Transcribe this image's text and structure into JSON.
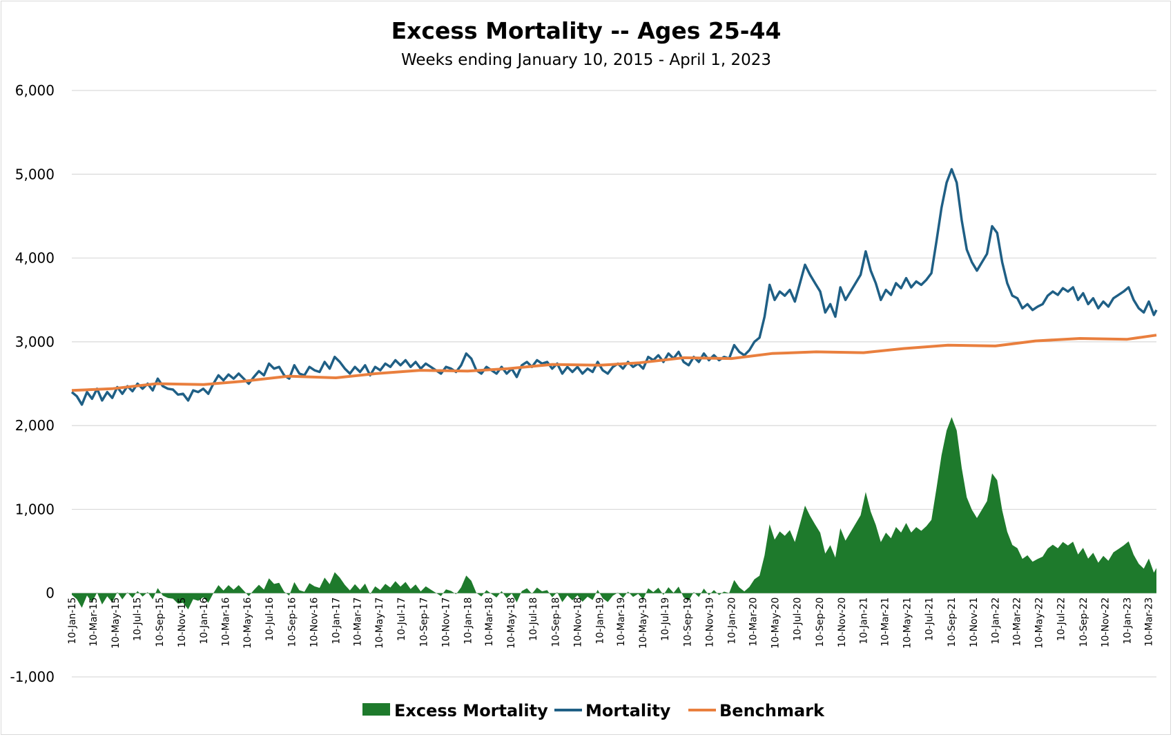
{
  "chart_data": {
    "type": "line",
    "title": "Excess Mortality -- Ages 25-44",
    "subtitle": "Weeks ending January 10, 2015 - April 1, 2023",
    "xlabel": "",
    "ylabel": "",
    "ylim": [
      -1000,
      6000
    ],
    "yticks": [
      -1000,
      0,
      1000,
      2000,
      3000,
      4000,
      5000,
      6000
    ],
    "ytick_labels": [
      "-1,000",
      "0",
      "1,000",
      "2,000",
      "3,000",
      "4,000",
      "5,000",
      "6,000"
    ],
    "xlim": [
      "2015-01-10",
      "2023-04-01"
    ],
    "x_tick_labels": [
      "10-Jan-15",
      "10-Mar-15",
      "10-May-15",
      "10-Jul-15",
      "10-Sep-15",
      "10-Nov-15",
      "10-Jan-16",
      "10-Mar-16",
      "10-May-16",
      "10-Jul-16",
      "10-Sep-16",
      "10-Nov-16",
      "10-Jan-17",
      "10-Mar-17",
      "10-May-17",
      "10-Jul-17",
      "10-Sep-17",
      "10-Nov-17",
      "10-Jan-18",
      "10-Mar-18",
      "10-May-18",
      "10-Jul-18",
      "10-Sep-18",
      "10-Nov-18",
      "10-Jan-19",
      "10-Mar-19",
      "10-May-19",
      "10-Jul-19",
      "10-Sep-19",
      "10-Nov-19",
      "10-Jan-20",
      "10-Mar-20",
      "10-May-20",
      "10-Jul-20",
      "10-Sep-20",
      "10-Nov-20",
      "10-Jan-21",
      "10-Mar-21",
      "10-May-21",
      "10-Jul-21",
      "10-Sep-21",
      "10-Nov-21",
      "10-Jan-22",
      "10-Mar-22",
      "10-May-22",
      "10-Jul-22",
      "10-Sep-22",
      "10-Nov-22",
      "10-Jan-23",
      "10-Mar-23"
    ],
    "grid": true,
    "legend_position": "bottom",
    "series": [
      {
        "name": "Excess Mortality",
        "type": "area",
        "color": "#1e7a2c",
        "computed_as": "Mortality minus Benchmark"
      },
      {
        "name": "Mortality",
        "type": "line",
        "color": "#1f5f85",
        "points": [
          [
            "2015-01-10",
            2400
          ],
          [
            "2015-01-24",
            2350
          ],
          [
            "2015-02-07",
            2250
          ],
          [
            "2015-02-21",
            2400
          ],
          [
            "2015-03-07",
            2320
          ],
          [
            "2015-03-21",
            2440
          ],
          [
            "2015-04-04",
            2300
          ],
          [
            "2015-04-18",
            2400
          ],
          [
            "2015-05-02",
            2330
          ],
          [
            "2015-05-16",
            2460
          ],
          [
            "2015-05-30",
            2380
          ],
          [
            "2015-06-13",
            2470
          ],
          [
            "2015-06-27",
            2410
          ],
          [
            "2015-07-11",
            2500
          ],
          [
            "2015-07-25",
            2440
          ],
          [
            "2015-08-08",
            2500
          ],
          [
            "2015-08-22",
            2420
          ],
          [
            "2015-09-05",
            2560
          ],
          [
            "2015-09-19",
            2470
          ],
          [
            "2015-10-03",
            2440
          ],
          [
            "2015-10-17",
            2430
          ],
          [
            "2015-10-31",
            2370
          ],
          [
            "2015-11-14",
            2380
          ],
          [
            "2015-11-28",
            2300
          ],
          [
            "2015-12-12",
            2420
          ],
          [
            "2015-12-26",
            2400
          ],
          [
            "2016-01-09",
            2440
          ],
          [
            "2016-01-23",
            2380
          ],
          [
            "2016-02-06",
            2500
          ],
          [
            "2016-02-20",
            2600
          ],
          [
            "2016-03-05",
            2540
          ],
          [
            "2016-03-19",
            2610
          ],
          [
            "2016-04-02",
            2560
          ],
          [
            "2016-04-16",
            2620
          ],
          [
            "2016-04-30",
            2560
          ],
          [
            "2016-05-14",
            2500
          ],
          [
            "2016-05-28",
            2580
          ],
          [
            "2016-06-11",
            2650
          ],
          [
            "2016-06-25",
            2600
          ],
          [
            "2016-07-09",
            2740
          ],
          [
            "2016-07-23",
            2680
          ],
          [
            "2016-08-06",
            2700
          ],
          [
            "2016-08-20",
            2600
          ],
          [
            "2016-09-03",
            2560
          ],
          [
            "2016-09-17",
            2720
          ],
          [
            "2016-10-01",
            2620
          ],
          [
            "2016-10-15",
            2600
          ],
          [
            "2016-10-29",
            2700
          ],
          [
            "2016-11-12",
            2660
          ],
          [
            "2016-11-26",
            2640
          ],
          [
            "2016-12-10",
            2760
          ],
          [
            "2016-12-24",
            2680
          ],
          [
            "2017-01-07",
            2820
          ],
          [
            "2017-01-21",
            2760
          ],
          [
            "2017-02-04",
            2680
          ],
          [
            "2017-02-18",
            2620
          ],
          [
            "2017-03-04",
            2700
          ],
          [
            "2017-03-18",
            2640
          ],
          [
            "2017-04-01",
            2720
          ],
          [
            "2017-04-15",
            2600
          ],
          [
            "2017-04-29",
            2700
          ],
          [
            "2017-05-13",
            2660
          ],
          [
            "2017-05-27",
            2740
          ],
          [
            "2017-06-10",
            2700
          ],
          [
            "2017-06-24",
            2780
          ],
          [
            "2017-07-08",
            2720
          ],
          [
            "2017-07-22",
            2780
          ],
          [
            "2017-08-05",
            2700
          ],
          [
            "2017-08-19",
            2760
          ],
          [
            "2017-09-02",
            2680
          ],
          [
            "2017-09-16",
            2740
          ],
          [
            "2017-09-30",
            2700
          ],
          [
            "2017-10-14",
            2660
          ],
          [
            "2017-10-28",
            2620
          ],
          [
            "2017-11-11",
            2700
          ],
          [
            "2017-11-25",
            2680
          ],
          [
            "2017-12-09",
            2640
          ],
          [
            "2017-12-23",
            2720
          ],
          [
            "2018-01-06",
            2860
          ],
          [
            "2018-01-20",
            2800
          ],
          [
            "2018-02-03",
            2660
          ],
          [
            "2018-02-17",
            2620
          ],
          [
            "2018-03-03",
            2700
          ],
          [
            "2018-03-17",
            2660
          ],
          [
            "2018-03-31",
            2620
          ],
          [
            "2018-04-14",
            2700
          ],
          [
            "2018-04-28",
            2620
          ],
          [
            "2018-05-12",
            2680
          ],
          [
            "2018-05-26",
            2580
          ],
          [
            "2018-06-09",
            2720
          ],
          [
            "2018-06-23",
            2760
          ],
          [
            "2018-07-07",
            2700
          ],
          [
            "2018-07-21",
            2780
          ],
          [
            "2018-08-04",
            2740
          ],
          [
            "2018-08-18",
            2760
          ],
          [
            "2018-09-01",
            2680
          ],
          [
            "2018-09-15",
            2740
          ],
          [
            "2018-09-29",
            2620
          ],
          [
            "2018-10-13",
            2700
          ],
          [
            "2018-10-27",
            2640
          ],
          [
            "2018-11-10",
            2700
          ],
          [
            "2018-11-24",
            2620
          ],
          [
            "2018-12-08",
            2680
          ],
          [
            "2018-12-22",
            2640
          ],
          [
            "2019-01-05",
            2760
          ],
          [
            "2019-01-19",
            2660
          ],
          [
            "2019-02-02",
            2620
          ],
          [
            "2019-02-16",
            2700
          ],
          [
            "2019-03-02",
            2740
          ],
          [
            "2019-03-16",
            2680
          ],
          [
            "2019-03-30",
            2760
          ],
          [
            "2019-04-13",
            2700
          ],
          [
            "2019-04-27",
            2740
          ],
          [
            "2019-05-11",
            2680
          ],
          [
            "2019-05-25",
            2820
          ],
          [
            "2019-06-08",
            2780
          ],
          [
            "2019-06-22",
            2840
          ],
          [
            "2019-07-06",
            2760
          ],
          [
            "2019-07-20",
            2860
          ],
          [
            "2019-08-03",
            2800
          ],
          [
            "2019-08-17",
            2880
          ],
          [
            "2019-08-31",
            2760
          ],
          [
            "2019-09-14",
            2720
          ],
          [
            "2019-09-28",
            2820
          ],
          [
            "2019-10-12",
            2760
          ],
          [
            "2019-10-26",
            2860
          ],
          [
            "2019-11-09",
            2780
          ],
          [
            "2019-11-23",
            2840
          ],
          [
            "2019-12-07",
            2780
          ],
          [
            "2019-12-21",
            2820
          ],
          [
            "2020-01-04",
            2800
          ],
          [
            "2020-01-18",
            2960
          ],
          [
            "2020-02-01",
            2880
          ],
          [
            "2020-02-15",
            2840
          ],
          [
            "2020-02-29",
            2900
          ],
          [
            "2020-03-14",
            3000
          ],
          [
            "2020-03-28",
            3050
          ],
          [
            "2020-04-11",
            3300
          ],
          [
            "2020-04-25",
            3680
          ],
          [
            "2020-05-09",
            3500
          ],
          [
            "2020-05-23",
            3600
          ],
          [
            "2020-06-06",
            3550
          ],
          [
            "2020-06-20",
            3620
          ],
          [
            "2020-07-04",
            3480
          ],
          [
            "2020-07-18",
            3700
          ],
          [
            "2020-08-01",
            3920
          ],
          [
            "2020-08-15",
            3800
          ],
          [
            "2020-08-29",
            3700
          ],
          [
            "2020-09-12",
            3600
          ],
          [
            "2020-09-26",
            3350
          ],
          [
            "2020-10-10",
            3450
          ],
          [
            "2020-10-24",
            3300
          ],
          [
            "2020-11-07",
            3650
          ],
          [
            "2020-11-21",
            3500
          ],
          [
            "2020-12-05",
            3600
          ],
          [
            "2020-12-19",
            3700
          ],
          [
            "2021-01-02",
            3800
          ],
          [
            "2021-01-16",
            4080
          ],
          [
            "2021-01-30",
            3850
          ],
          [
            "2021-02-13",
            3700
          ],
          [
            "2021-02-27",
            3500
          ],
          [
            "2021-03-13",
            3620
          ],
          [
            "2021-03-27",
            3560
          ],
          [
            "2021-04-10",
            3700
          ],
          [
            "2021-04-24",
            3640
          ],
          [
            "2021-05-08",
            3760
          ],
          [
            "2021-05-22",
            3650
          ],
          [
            "2021-06-05",
            3720
          ],
          [
            "2021-06-19",
            3680
          ],
          [
            "2021-07-03",
            3740
          ],
          [
            "2021-07-17",
            3820
          ],
          [
            "2021-07-31",
            4200
          ],
          [
            "2021-08-14",
            4600
          ],
          [
            "2021-08-28",
            4900
          ],
          [
            "2021-09-11",
            5060
          ],
          [
            "2021-09-25",
            4900
          ],
          [
            "2021-10-09",
            4450
          ],
          [
            "2021-10-23",
            4100
          ],
          [
            "2021-11-06",
            3950
          ],
          [
            "2021-11-20",
            3850
          ],
          [
            "2021-12-04",
            3950
          ],
          [
            "2021-12-18",
            4050
          ],
          [
            "2022-01-01",
            4380
          ],
          [
            "2022-01-15",
            4300
          ],
          [
            "2022-01-29",
            3950
          ],
          [
            "2022-02-12",
            3700
          ],
          [
            "2022-02-26",
            3550
          ],
          [
            "2022-03-12",
            3520
          ],
          [
            "2022-03-26",
            3400
          ],
          [
            "2022-04-09",
            3450
          ],
          [
            "2022-04-23",
            3380
          ],
          [
            "2022-05-07",
            3420
          ],
          [
            "2022-05-21",
            3450
          ],
          [
            "2022-06-04",
            3550
          ],
          [
            "2022-06-18",
            3600
          ],
          [
            "2022-07-02",
            3560
          ],
          [
            "2022-07-16",
            3640
          ],
          [
            "2022-07-30",
            3600
          ],
          [
            "2022-08-13",
            3650
          ],
          [
            "2022-08-27",
            3500
          ],
          [
            "2022-09-10",
            3580
          ],
          [
            "2022-09-24",
            3450
          ],
          [
            "2022-10-08",
            3520
          ],
          [
            "2022-10-22",
            3400
          ],
          [
            "2022-11-05",
            3480
          ],
          [
            "2022-11-19",
            3420
          ],
          [
            "2022-12-03",
            3520
          ],
          [
            "2022-12-17",
            3560
          ],
          [
            "2022-12-31",
            3600
          ],
          [
            "2023-01-14",
            3650
          ],
          [
            "2023-01-28",
            3500
          ],
          [
            "2023-02-11",
            3400
          ],
          [
            "2023-02-25",
            3350
          ],
          [
            "2023-03-11",
            3480
          ],
          [
            "2023-03-25",
            3320
          ],
          [
            "2023-04-01",
            3380
          ]
        ]
      },
      {
        "name": "Benchmark",
        "type": "line",
        "color": "#e97f3e",
        "points": [
          [
            "2015-01-10",
            2420
          ],
          [
            "2015-05-01",
            2440
          ],
          [
            "2015-09-01",
            2500
          ],
          [
            "2016-01-10",
            2490
          ],
          [
            "2016-05-01",
            2530
          ],
          [
            "2016-09-01",
            2590
          ],
          [
            "2017-01-10",
            2570
          ],
          [
            "2017-05-01",
            2620
          ],
          [
            "2017-09-01",
            2660
          ],
          [
            "2018-01-10",
            2650
          ],
          [
            "2018-05-01",
            2680
          ],
          [
            "2018-09-01",
            2730
          ],
          [
            "2019-01-10",
            2720
          ],
          [
            "2019-05-01",
            2750
          ],
          [
            "2019-09-01",
            2810
          ],
          [
            "2020-01-10",
            2800
          ],
          [
            "2020-05-01",
            2860
          ],
          [
            "2020-09-01",
            2880
          ],
          [
            "2021-01-10",
            2870
          ],
          [
            "2021-05-01",
            2920
          ],
          [
            "2021-09-01",
            2960
          ],
          [
            "2022-01-10",
            2950
          ],
          [
            "2022-05-01",
            3010
          ],
          [
            "2022-09-01",
            3040
          ],
          [
            "2023-01-10",
            3030
          ],
          [
            "2023-04-01",
            3080
          ]
        ]
      }
    ]
  }
}
